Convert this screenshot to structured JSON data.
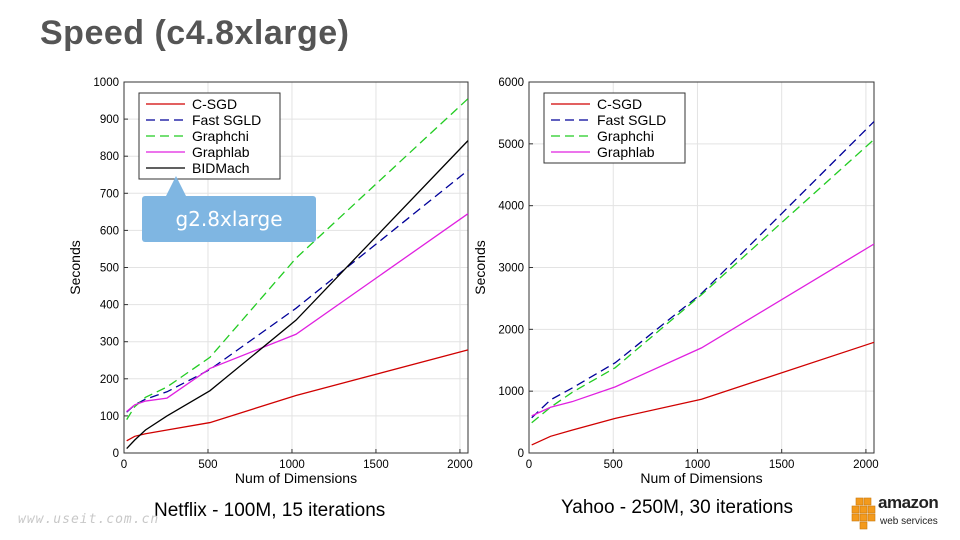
{
  "page": {
    "title": "Speed (c4.8xlarge)",
    "callout": "g2.8xlarge",
    "watermark": "www.useit.com.cn",
    "logo": {
      "word": "amazon",
      "sub": "web services",
      "icon": "aws-boxes-icon"
    }
  },
  "chart_data": [
    {
      "type": "line",
      "caption": "Netflix - 100M, 15 iterations",
      "xlabel": "Num of Dimensions",
      "ylabel": "Seconds",
      "xlim": [
        0,
        2048
      ],
      "ylim": [
        0,
        1000
      ],
      "xticks": [
        0,
        500,
        1000,
        1500,
        2000
      ],
      "yticks": [
        0,
        100,
        200,
        300,
        400,
        500,
        600,
        700,
        800,
        900,
        1000
      ],
      "grid": true,
      "legend_position": "top-left",
      "series": [
        {
          "name": "C-SGD",
          "color": "#d00000",
          "dash": "solid",
          "x": [
            16,
            64,
            128,
            256,
            512,
            1024,
            2048
          ],
          "y": [
            33,
            45,
            52,
            62,
            82,
            155,
            278
          ]
        },
        {
          "name": "Fast SGLD",
          "color": "#000099",
          "dash": "dashed",
          "x": [
            16,
            64,
            128,
            256,
            512,
            1024,
            2048
          ],
          "y": [
            110,
            130,
            145,
            165,
            225,
            390,
            762
          ]
        },
        {
          "name": "Graphchi",
          "color": "#22cc22",
          "dash": "dashed",
          "x": [
            16,
            64,
            128,
            256,
            512,
            1024,
            2048
          ],
          "y": [
            90,
            125,
            150,
            178,
            258,
            525,
            955
          ]
        },
        {
          "name": "Graphlab",
          "color": "#e020e0",
          "dash": "solid",
          "x": [
            16,
            64,
            128,
            256,
            512,
            1024,
            2048
          ],
          "y": [
            112,
            130,
            140,
            148,
            228,
            320,
            645
          ]
        },
        {
          "name": "BIDMach",
          "color": "#000000",
          "dash": "solid",
          "x": [
            16,
            64,
            128,
            256,
            512,
            1024,
            2048
          ],
          "y": [
            12,
            35,
            62,
            100,
            168,
            358,
            842
          ]
        }
      ]
    },
    {
      "type": "line",
      "caption": "Yahoo - 250M, 30 iterations",
      "xlabel": "Num of Dimensions",
      "ylabel": "Seconds",
      "xlim": [
        0,
        2048
      ],
      "ylim": [
        0,
        6000
      ],
      "xticks": [
        0,
        500,
        1000,
        1500,
        2000
      ],
      "yticks": [
        0,
        1000,
        2000,
        3000,
        4000,
        5000,
        6000
      ],
      "grid": true,
      "legend_position": "top-left",
      "series": [
        {
          "name": "C-SGD",
          "color": "#d00000",
          "dash": "solid",
          "x": [
            16,
            128,
            256,
            512,
            1024,
            2048
          ],
          "y": [
            130,
            270,
            370,
            560,
            870,
            1790
          ]
        },
        {
          "name": "Fast SGLD",
          "color": "#000099",
          "dash": "dashed",
          "x": [
            16,
            128,
            256,
            512,
            1024,
            2048
          ],
          "y": [
            570,
            860,
            1050,
            1460,
            2580,
            5360
          ]
        },
        {
          "name": "Graphchi",
          "color": "#22cc22",
          "dash": "dashed",
          "x": [
            16,
            128,
            256,
            512,
            1024,
            2048
          ],
          "y": [
            490,
            740,
            980,
            1380,
            2560,
            5070
          ]
        },
        {
          "name": "Graphlab",
          "color": "#e020e0",
          "dash": "solid",
          "x": [
            16,
            128,
            256,
            512,
            1024,
            2048
          ],
          "y": [
            600,
            740,
            830,
            1070,
            1700,
            3380
          ]
        }
      ]
    }
  ]
}
